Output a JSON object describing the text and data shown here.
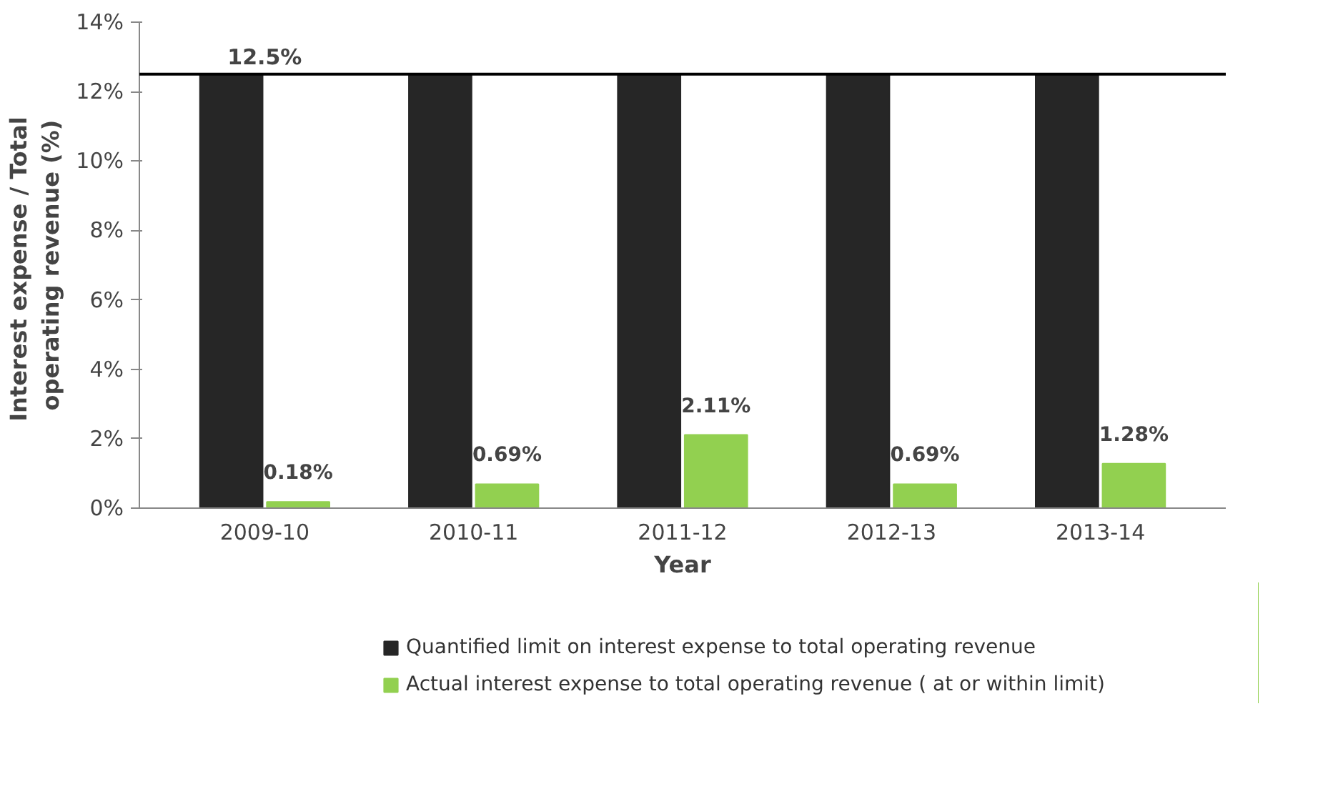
{
  "chart_data": {
    "type": "bar",
    "categories": [
      "2009-10",
      "2010-11",
      "2011-12",
      "2012-13",
      "2013-14"
    ],
    "series": [
      {
        "name": "Quantified limit on interest expense to total operating revenue",
        "color": "#262626",
        "values": [
          12.5,
          12.5,
          12.5,
          12.5,
          12.5
        ]
      },
      {
        "name": "Actual interest expense to total operating revenue ( at or within limit)",
        "color": "#92d050",
        "values": [
          0.18,
          0.69,
          2.11,
          0.69,
          1.28
        ],
        "value_labels": [
          "0.18%",
          "0.69%",
          "2.11%",
          "0.69%",
          "1.28%"
        ]
      }
    ],
    "xlabel": "Year",
    "ylabel": "Interest  expense / Total operating revenue (%)",
    "ylim": [
      0,
      14
    ],
    "yticks": [
      {
        "value": 0,
        "label": "0%"
      },
      {
        "value": 2,
        "label": "2%"
      },
      {
        "value": 4,
        "label": "4%"
      },
      {
        "value": 6,
        "label": "6%"
      },
      {
        "value": 8,
        "label": "8%"
      },
      {
        "value": 10,
        "label": "10%"
      },
      {
        "value": 12,
        "label": "12%"
      },
      {
        "value": 14,
        "label": "14%"
      }
    ],
    "ref_lines": [
      {
        "axis": "y",
        "value": 12.5,
        "label": "12.5%",
        "color": "#000000"
      }
    ],
    "grid": false,
    "legend": "bottom"
  }
}
